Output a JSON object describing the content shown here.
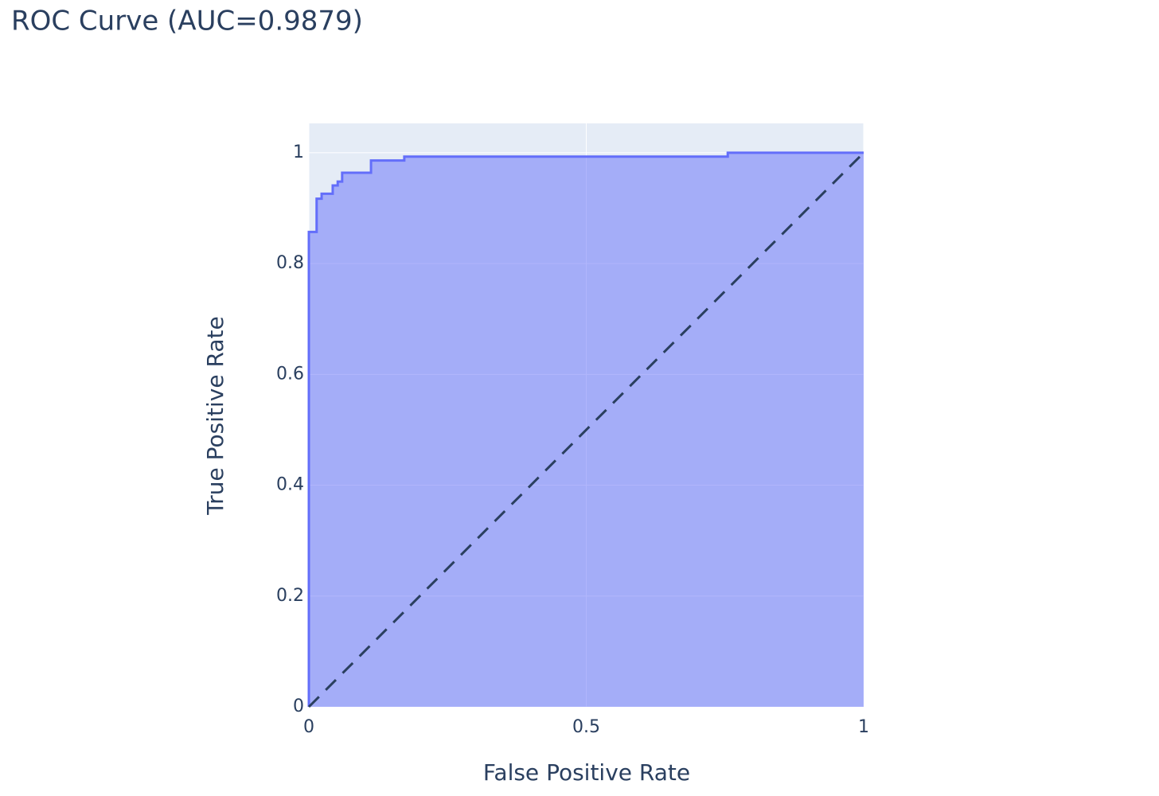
{
  "chart_data": {
    "type": "line",
    "title": "ROC Curve (AUC=0.9879)",
    "x_label": "False Positive Rate",
    "y_label": "True Positive Rate",
    "xlim": [
      0,
      1
    ],
    "xticks": [
      0,
      0.5,
      1
    ],
    "ylim": [
      0,
      1.053
    ],
    "yticks": [
      0,
      0.2,
      0.4,
      0.6,
      0.8,
      1
    ],
    "grid": true,
    "background": "#e5ecf6",
    "series": [
      {
        "color": "#636efa",
        "fill": "tozeroy",
        "fill_color": "rgba(99,110,250,0.5)",
        "dash": false,
        "x": [
          0,
          0,
          0.014,
          0.014,
          0.023,
          0.023,
          0.043,
          0.043,
          0.052,
          0.052,
          0.06,
          0.06,
          0.112,
          0.112,
          0.172,
          0.172,
          0.755,
          0.755,
          1
        ],
        "values": [
          0,
          0.857,
          0.857,
          0.917,
          0.917,
          0.926,
          0.926,
          0.941,
          0.941,
          0.948,
          0.948,
          0.964,
          0.964,
          0.986,
          0.986,
          0.993,
          0.993,
          1,
          1
        ]
      },
      {
        "color": "#2a3f5f",
        "fill": "none",
        "dash": true,
        "x": [
          0,
          1
        ],
        "values": [
          0,
          1
        ]
      }
    ]
  }
}
